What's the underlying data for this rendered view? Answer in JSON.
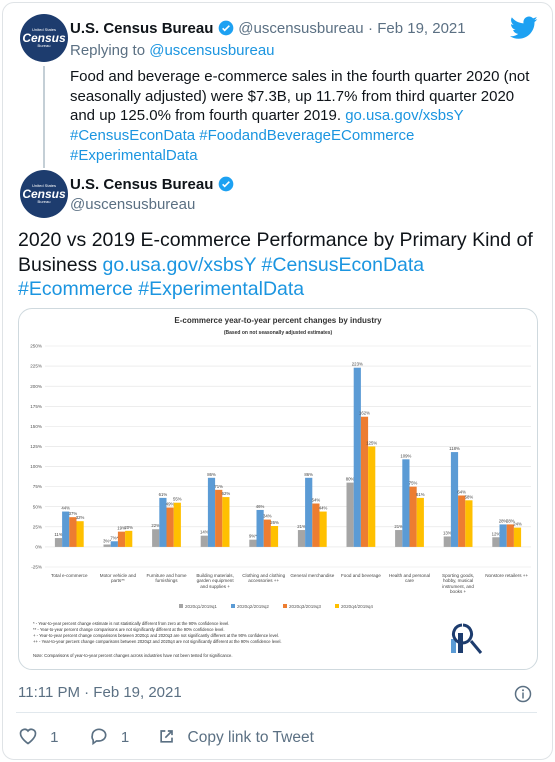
{
  "avatar": {
    "lines": [
      "United States",
      "Census",
      "Bureau"
    ]
  },
  "parent": {
    "name": "U.S. Census Bureau",
    "handle": "@uscensusbureau",
    "date": "· Feb 19, 2021",
    "replying": "Replying to",
    "reply_to": "@uscensusbureau",
    "text": "Food and beverage e-commerce sales in the fourth quarter 2020 (not seasonally adjusted) were $7.3B, up 11.7% from third quarter 2020 and up 125.0% from fourth quarter 2019.",
    "links": [
      "go.usa.gov/xsbsY",
      "#CensusEconData",
      "#FoodandBeverageECommerce",
      "#ExperimentalData"
    ]
  },
  "tweet": {
    "name": "U.S. Census Bureau",
    "handle": "@uscensusbureau",
    "text": "2020 vs 2019 E-commerce Performance by Primary Kind of Business",
    "links": [
      "go.usa.gov/xsbsY",
      "#CensusEconData",
      "#Ecommerce",
      "#ExperimentalData"
    ],
    "timestamp": "11:11 PM · Feb 19, 2021",
    "likes": 1,
    "replies": 1,
    "share": "Copy link to Tweet"
  },
  "chart_data": {
    "type": "bar",
    "title": "E-commerce year-to-year percent changes by industry",
    "subtitle": "(Based on not seasonally adjusted estimates)",
    "categories": [
      "Total e-commerce",
      "Motor vehicle and parts**",
      "Furniture and home furnishings",
      "Building materials, garden equipment and supplies +",
      "Clothing and clothing accessories ++",
      "General merchandise",
      "Food and beverage",
      "Health and personal care",
      "Sporting goods, hobby, musical instrument, and books +",
      "Nonstore retailers ++"
    ],
    "series": [
      {
        "name": "2020q1/2019q1",
        "color": "#a5a5a5",
        "values": [
          11,
          3,
          22,
          14,
          9,
          21,
          80,
          21,
          13,
          12
        ],
        "value_labels": [
          "11%",
          "3%*",
          "22%",
          "14%",
          "9%*",
          "21%",
          "80%",
          "21%",
          "13%",
          "12%"
        ]
      },
      {
        "name": "2020q2/2019q2",
        "color": "#5b9bd5",
        "values": [
          44,
          7,
          61,
          86,
          46,
          86,
          223,
          109,
          118,
          28
        ],
        "value_labels": [
          "44%",
          "7%*",
          "61%",
          "86%",
          "46%",
          "86%",
          "223%",
          "109%",
          "118%",
          "28%"
        ]
      },
      {
        "name": "2020q3/2019q3",
        "color": "#ed7d31",
        "values": [
          37,
          19,
          49,
          71,
          34,
          54,
          162,
          75,
          64,
          28
        ],
        "value_labels": [
          "37%",
          "19%",
          "49%",
          "71%",
          "34%",
          "54%",
          "162%",
          "75%",
          "64%",
          "28%"
        ]
      },
      {
        "name": "2020q4/2019q4",
        "color": "#ffc000",
        "values": [
          32,
          20,
          55,
          62,
          26,
          44,
          125,
          61,
          58,
          24
        ],
        "value_labels": [
          "32%",
          "20%",
          "55%",
          "62%",
          "26%",
          "44%",
          "125%",
          "61%",
          "58%",
          "24%"
        ]
      }
    ],
    "ylim": [
      -25,
      250
    ],
    "yticks": [
      {
        "value": -25,
        "label": "-25%"
      },
      {
        "value": 0,
        "label": "0%"
      },
      {
        "value": 25,
        "label": "25%"
      },
      {
        "value": 50,
        "label": "50%"
      },
      {
        "value": 75,
        "label": "75%"
      },
      {
        "value": 100,
        "label": "100%"
      },
      {
        "value": 125,
        "label": "125%"
      },
      {
        "value": 150,
        "label": "150%"
      },
      {
        "value": 175,
        "label": "175%"
      },
      {
        "value": 200,
        "label": "200%"
      },
      {
        "value": 225,
        "label": "225%"
      },
      {
        "value": 250,
        "label": "250%"
      }
    ],
    "grid": true,
    "footnotes": [
      "* - Year-to-year percent change estimate is not statistically different from zero at the 90% confidence level.",
      "** - Year-to-year percent change comparisons are not significantly different at the 90% confidence level.",
      "+ - Year-to-year percent change comparisons between 2020q1 and 2020q3 are not significantly different at the 90% confidence level.",
      "++ - Year-to-year percent change comparisons between 2020q2 and 2020q4 are not significantly different at the 90% confidence level."
    ],
    "note": "Note: Comparisons of year-to-year percent changes across industries have not been tested for significance."
  }
}
